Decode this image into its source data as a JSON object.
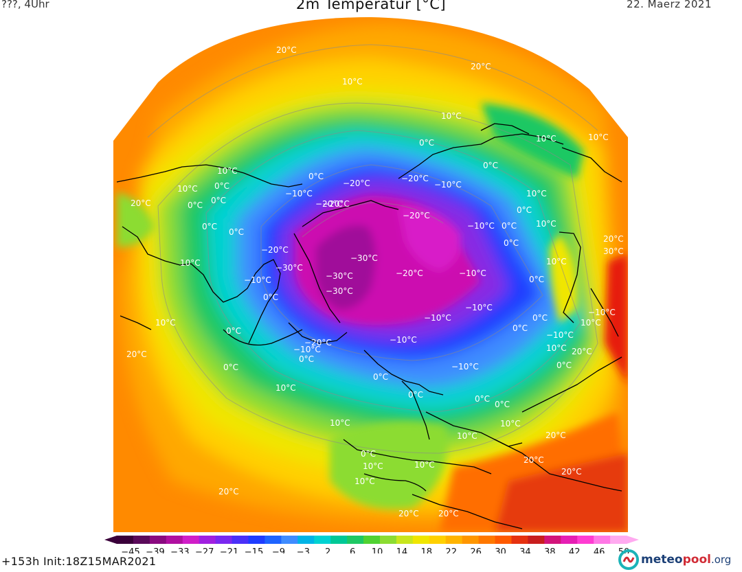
{
  "header": {
    "left": "???, 4Uhr",
    "title": "2m Temperatur [°C]",
    "date": "22. Maerz 2021"
  },
  "footer": {
    "run_info": "+153h  Init:18Z15MAR2021",
    "brand_part1": "meteo",
    "brand_part2": "pool",
    "brand_part3": ".org"
  },
  "colors": {
    "deep_purple": "#5a0a5a",
    "magenta": "#cc10b0",
    "violet": "#8a2be2",
    "blue": "#1e3cff",
    "light_blue": "#3f8cff",
    "cyan": "#00d2d2",
    "green": "#1ec864",
    "light_green": "#8cdc32",
    "yellow": "#f0e600",
    "orange": "#ffa000",
    "dark_orange": "#ff6e00",
    "red": "#e61e0a"
  },
  "legend": {
    "ticks": [
      "−45",
      "−39",
      "−33",
      "−27",
      "−21",
      "−15",
      "−9",
      "−3",
      "2",
      "6",
      "10",
      "14",
      "18",
      "22",
      "26",
      "30",
      "34",
      "38",
      "42",
      "46",
      "50"
    ]
  },
  "isotherm_labels": [
    "20°C",
    "20°C",
    "10°C",
    "10°C",
    "0°C",
    "10°C",
    "10°C",
    "10°C",
    "0°C",
    "0°C",
    "−10°C",
    "−20°C",
    "−20°C",
    "−10°C",
    "0°C",
    "0°C",
    "−20°C",
    "−20°C",
    "10°C",
    "20°C",
    "0°C",
    "10°C",
    "0°C",
    "10°C",
    "0°C",
    "−20°C",
    "−30°C",
    "−30°C",
    "−10°C",
    "0°C",
    "−30°C",
    "−30°C",
    "−20°C",
    "−10°C",
    "0°C",
    "−10°C",
    "−10°C",
    "0°C",
    "0°C",
    "10°C",
    "−20°C",
    "−10°C",
    "0°C",
    "10°C",
    "20°C",
    "0°C",
    "−10°C",
    "10°C",
    "0°C",
    "0°C",
    "0°C",
    "0°C",
    "0°C",
    "20°C",
    "10°C",
    "0°C",
    "10°C",
    "0°C",
    "0°C",
    "0°C",
    "10°C",
    "10°C",
    "10°C",
    "0°C",
    "10°C",
    "10°C",
    "10°C",
    "20°C",
    "20°C",
    "20°C",
    "20°C",
    "30°C",
    "−10°C",
    "10°C",
    "−10°C",
    "−10°C",
    "−10°C",
    "−20°C",
    "20°C",
    "20°C",
    "20°C"
  ]
}
